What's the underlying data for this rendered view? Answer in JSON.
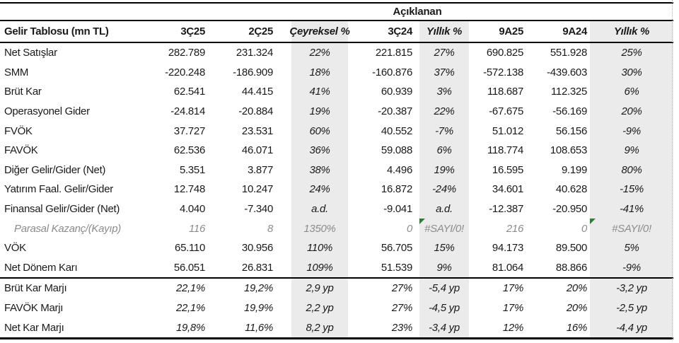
{
  "colors": {
    "shaded_column_bg": "#ebebeb",
    "muted_text": "#8c8c8c",
    "error_flag": "#2e7d32",
    "border": "#000000",
    "text": "#1a1a1a"
  },
  "table": {
    "announced_label": "Açıklanan",
    "columns": [
      {
        "key": "label",
        "label": "Gelir Tablosu (mn TL)",
        "shaded": false
      },
      {
        "key": "q3_25",
        "label": "3Ç25",
        "shaded": false
      },
      {
        "key": "q2_25",
        "label": "2Ç25",
        "shaded": false
      },
      {
        "key": "qoq",
        "label": "Çeyreksel %",
        "shaded": true
      },
      {
        "key": "q3_24",
        "label": "3Ç24",
        "shaded": false
      },
      {
        "key": "yoy_q",
        "label": "Yıllık %",
        "shaded": true
      },
      {
        "key": "n9a_25",
        "label": "9A25",
        "shaded": false
      },
      {
        "key": "n9a_24",
        "label": "9A24",
        "shaded": false
      },
      {
        "key": "yoy_9a",
        "label": "Yıllık %",
        "shaded": true
      }
    ],
    "rows": [
      {
        "label": "Net Satışlar",
        "values": [
          "282.789",
          "231.324",
          "22%",
          "221.815",
          "27%",
          "690.825",
          "551.928",
          "25%"
        ],
        "type": "normal"
      },
      {
        "label": "SMM",
        "values": [
          "-220.248",
          "-186.909",
          "18%",
          "-160.876",
          "37%",
          "-572.138",
          "-439.603",
          "30%"
        ],
        "type": "normal"
      },
      {
        "label": "Brüt Kar",
        "values": [
          "62.541",
          "44.415",
          "41%",
          "60.939",
          "3%",
          "118.687",
          "112.325",
          "6%"
        ],
        "type": "normal"
      },
      {
        "label": "Operasyonel Gider",
        "values": [
          "-24.814",
          "-20.884",
          "19%",
          "-20.387",
          "22%",
          "-67.675",
          "-56.169",
          "20%"
        ],
        "type": "normal"
      },
      {
        "label": "FVÖK",
        "values": [
          "37.727",
          "23.531",
          "60%",
          "40.552",
          "-7%",
          "51.012",
          "56.156",
          "-9%"
        ],
        "type": "normal"
      },
      {
        "label": "FAVÖK",
        "values": [
          "62.536",
          "46.071",
          "36%",
          "59.088",
          "6%",
          "118.774",
          "108.653",
          "9%"
        ],
        "type": "normal"
      },
      {
        "label": "Diğer Gelir/Gider (Net)",
        "values": [
          "5.351",
          "3.877",
          "38%",
          "4.496",
          "19%",
          "16.595",
          "9.199",
          "80%"
        ],
        "type": "normal"
      },
      {
        "label": "Yatırım Faal. Gelir/Gider",
        "values": [
          "12.748",
          "10.247",
          "24%",
          "16.872",
          "-24%",
          "34.601",
          "40.628",
          "-15%"
        ],
        "type": "normal"
      },
      {
        "label": "Finansal Gelir/Gider (Net)",
        "values": [
          "4.040",
          "-7.340",
          "a.d.",
          "-9.041",
          "a.d.",
          "-12.387",
          "-20.950",
          "-41%"
        ],
        "type": "normal"
      },
      {
        "label": "Parasal Kazanç/(Kayıp)",
        "values": [
          "116",
          "8",
          "1350%",
          "0",
          "#SAYI/0!",
          "216",
          "0",
          "#SAYI/0!"
        ],
        "type": "muted",
        "flags": [
          4,
          7
        ]
      },
      {
        "label": "VÖK",
        "values": [
          "65.110",
          "30.956",
          "110%",
          "56.705",
          "15%",
          "94.173",
          "89.500",
          "5%"
        ],
        "type": "normal"
      },
      {
        "label": "Net Dönem Karı",
        "values": [
          "56.051",
          "26.831",
          "109%",
          "51.539",
          "9%",
          "81.064",
          "88.866",
          "-9%"
        ],
        "type": "normal",
        "separator_below": true
      },
      {
        "label": "Brüt Kar Marjı",
        "values": [
          "22,1%",
          "19,2%",
          "2,9 yp",
          "27%",
          "-5,4 yp",
          "17%",
          "20%",
          "-3,2 yp"
        ],
        "type": "italic"
      },
      {
        "label": "FAVÖK Marjı",
        "values": [
          "22,1%",
          "19,9%",
          "2,2 yp",
          "27%",
          "-4,5 yp",
          "17%",
          "20%",
          "-2,5 yp"
        ],
        "type": "italic"
      },
      {
        "label": "Net Kar Marjı",
        "values": [
          "19,8%",
          "11,6%",
          "8,2 yp",
          "23%",
          "-3,4 yp",
          "12%",
          "16%",
          "-4,4 yp"
        ],
        "type": "italic"
      }
    ]
  }
}
